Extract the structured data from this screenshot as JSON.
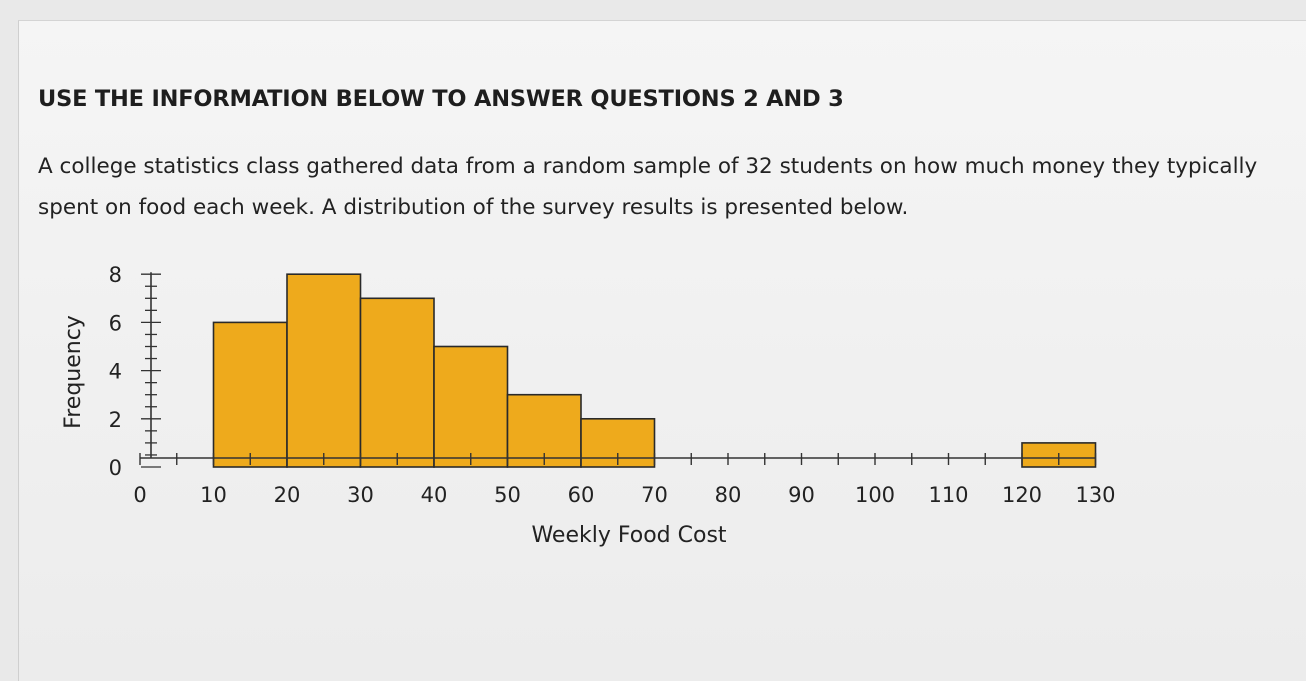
{
  "page": {
    "heading": "USE THE INFORMATION BELOW TO ANSWER QUESTIONS 2 AND 3",
    "intro": "A college statistics class gathered data from a random sample of 32 students on how much money they typically spent on food each week.  A distribution of the survey results is presented below."
  },
  "colors": {
    "bar_fill": "#eeaa1c",
    "bar_stroke": "#2a2a2a",
    "axis": "#333333"
  },
  "chart_data": {
    "type": "bar",
    "subtype": "histogram",
    "title": "",
    "xlabel": "Weekly Food Cost",
    "ylabel": "Frequency",
    "bins": [
      {
        "start": 10,
        "end": 20,
        "value": 6
      },
      {
        "start": 20,
        "end": 30,
        "value": 8
      },
      {
        "start": 30,
        "end": 40,
        "value": 7
      },
      {
        "start": 40,
        "end": 50,
        "value": 5
      },
      {
        "start": 50,
        "end": 60,
        "value": 3
      },
      {
        "start": 60,
        "end": 70,
        "value": 2
      },
      {
        "start": 120,
        "end": 130,
        "value": 1
      }
    ],
    "xlim": [
      0,
      130
    ],
    "ylim": [
      0,
      8
    ],
    "x_ticks": [
      0,
      10,
      20,
      30,
      40,
      50,
      60,
      70,
      80,
      90,
      100,
      110,
      120,
      130
    ],
    "y_ticks": [
      0,
      2,
      4,
      6,
      8
    ],
    "grid": false,
    "legend": "none"
  }
}
